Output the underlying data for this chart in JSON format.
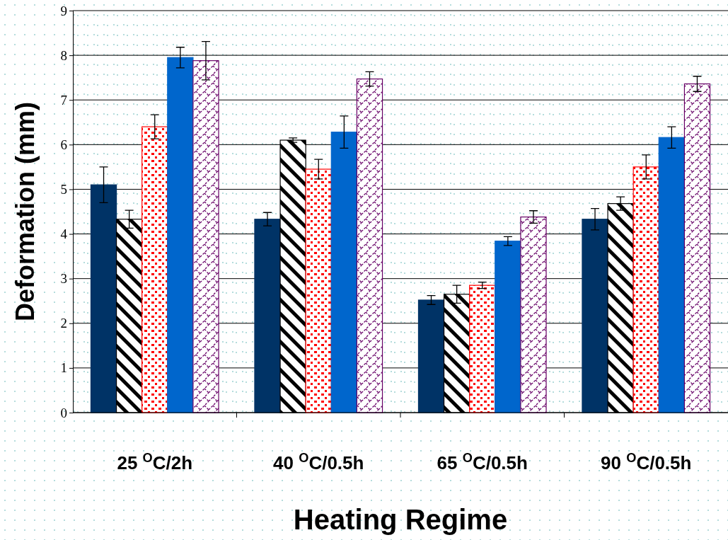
{
  "chart_data": {
    "type": "bar",
    "xlabel": "Heating Regime",
    "ylabel": "Deformation (mm)",
    "categories": [
      "25 $^{O}$C/2h",
      "40 $^{O}$C/0.5h",
      "65 $^{O}$C/0.5h",
      "90 $^{O}$C/0.5h"
    ],
    "series": [
      {
        "color": "#003366",
        "values": [
          5.1,
          4.33,
          2.52,
          4.33
        ],
        "errors": [
          0.4,
          0.15,
          0.1,
          0.24
        ]
      },
      {
        "color": "#000000",
        "values": [
          4.33,
          6.1,
          2.65,
          4.68
        ],
        "errors": [
          0.2,
          0.05,
          0.2,
          0.15
        ]
      },
      {
        "color": "#ff0000",
        "values": [
          6.4,
          5.45,
          2.85,
          5.5
        ],
        "errors": [
          0.27,
          0.22,
          0.07,
          0.27
        ]
      },
      {
        "color": "#0066cc",
        "values": [
          7.95,
          6.28,
          3.84,
          6.16
        ],
        "errors": [
          0.23,
          0.36,
          0.1,
          0.24
        ]
      },
      {
        "color": "#660066",
        "values": [
          7.88,
          7.47,
          4.38,
          7.36
        ],
        "errors": [
          0.43,
          0.16,
          0.14,
          0.17
        ]
      }
    ],
    "ylim": [
      0,
      9
    ],
    "yticks": [
      0,
      1,
      2,
      3,
      4,
      5,
      6,
      7,
      8,
      9
    ],
    "grid": "y"
  }
}
